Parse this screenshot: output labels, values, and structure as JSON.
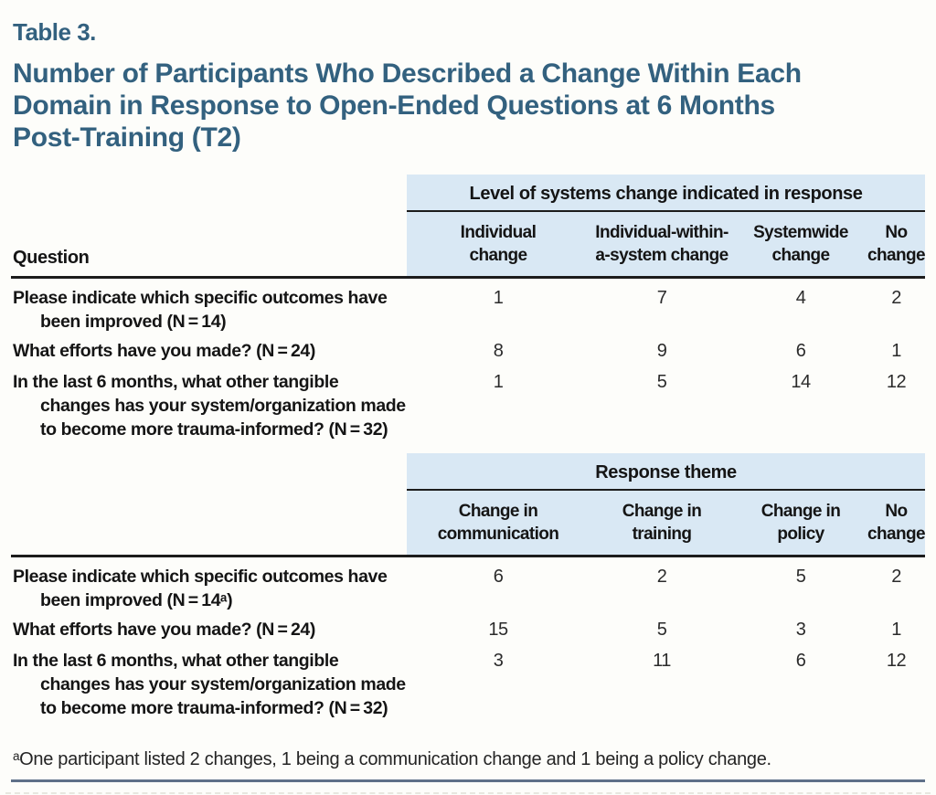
{
  "page": {
    "label": "Table 3.",
    "title_lines": [
      "Number of Participants Who Described a Change Within Each",
      "Domain in Response to Open-Ended Questions at 6 Months",
      "Post-Training (T2)"
    ],
    "footnote": "ᵃOne participant listed 2 changes, 1 being a communication change and 1 being a policy change."
  },
  "colors": {
    "title_blue": "#33617f",
    "header_fill": "#d9e8f4",
    "rule_slate": "#5f7089",
    "text_black": "#1f1f1f"
  },
  "tables": [
    {
      "question_header": "Question",
      "spanner": "Level of systems change indicated in response",
      "columns": [
        {
          "line1": "Individual",
          "line2": "change"
        },
        {
          "line1": "Individual-within-",
          "line2": "a-system change"
        },
        {
          "line1": "Systemwide",
          "line2": "change"
        },
        {
          "line1": "No",
          "line2": "change"
        }
      ],
      "rows": [
        {
          "question_line1": "Please indicate which specific outcomes have",
          "question_line2": "been improved (N = 14)",
          "question_line3": "",
          "values": [
            "1",
            "7",
            "4",
            "2"
          ]
        },
        {
          "question_line1": "What efforts have you made? (N = 24)",
          "question_line2": "",
          "question_line3": "",
          "values": [
            "8",
            "9",
            "6",
            "1"
          ]
        },
        {
          "question_line1": "In the last 6 months, what other tangible",
          "question_line2": "changes has your system/organization made",
          "question_line3": "to become more trauma-informed? (N = 32)",
          "values": [
            "1",
            "5",
            "14",
            "12"
          ]
        }
      ]
    },
    {
      "question_header": "",
      "spanner": "Response theme",
      "columns": [
        {
          "line1": "Change in",
          "line2": "communication"
        },
        {
          "line1": "Change in",
          "line2": "training"
        },
        {
          "line1": "Change in",
          "line2": "policy"
        },
        {
          "line1": "No",
          "line2": "change"
        }
      ],
      "rows": [
        {
          "question_line1": "Please indicate which specific outcomes have",
          "question_line2": "been improved (N = 14ᵃ)",
          "question_line3": "",
          "values": [
            "6",
            "2",
            "5",
            "2"
          ]
        },
        {
          "question_line1": "What efforts have you made? (N = 24)",
          "question_line2": "",
          "question_line3": "",
          "values": [
            "15",
            "5",
            "3",
            "1"
          ]
        },
        {
          "question_line1": "In the last 6 months, what other tangible",
          "question_line2": "changes has your system/organization made",
          "question_line3": "to become more trauma-informed? (N = 32)",
          "values": [
            "3",
            "11",
            "6",
            "12"
          ]
        }
      ]
    }
  ]
}
